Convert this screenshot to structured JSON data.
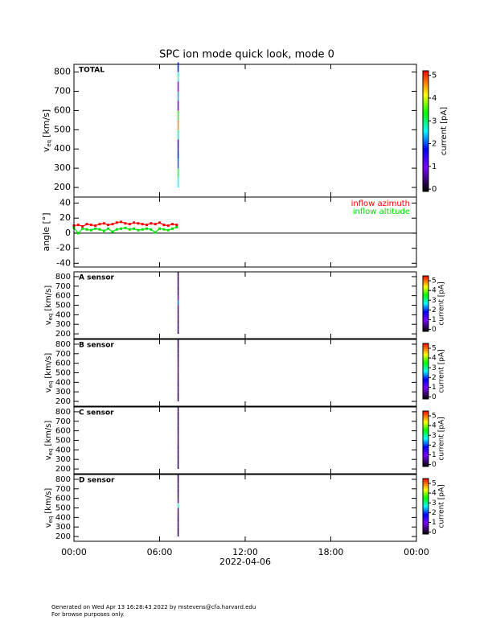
{
  "chart_data": [
    {
      "type": "spectrogram",
      "title": "SPC ion mode quick look, mode 0",
      "label": "TOTAL",
      "ylabel": {
        "main": "v",
        "sub": "eq",
        "unit": "[km/s]"
      },
      "xlim": [
        0,
        24
      ],
      "ylim": [
        150,
        840
      ],
      "yticks": [
        200,
        300,
        400,
        500,
        600,
        700,
        800
      ],
      "x": [
        7.3
      ],
      "bins": [
        200,
        250,
        300,
        350,
        400,
        450,
        500,
        550,
        600,
        650,
        700,
        750,
        800,
        850
      ],
      "values": [
        [
          2.5,
          3.0,
          2.0,
          1.8,
          1.5,
          2.8,
          4.5,
          3.2,
          1.2,
          2.2,
          1.0,
          2.5,
          1.8
        ]
      ],
      "colorbar": {
        "label": "current [pA]",
        "lim": [
          -0.1,
          5.2
        ],
        "ticks": [
          0,
          1,
          2,
          3,
          4,
          5
        ]
      }
    },
    {
      "type": "line",
      "ylabel": "angle [°]",
      "xlim": [
        0,
        24
      ],
      "ylim": [
        -45,
        48
      ],
      "yticks": [
        -40,
        -20,
        0,
        20,
        40
      ],
      "reference_line": 0,
      "x": [
        0,
        0.3,
        0.6,
        0.9,
        1.2,
        1.5,
        1.8,
        2.1,
        2.4,
        2.7,
        3.0,
        3.3,
        3.6,
        3.9,
        4.2,
        4.5,
        4.8,
        5.1,
        5.4,
        5.7,
        6.0,
        6.3,
        6.6,
        6.9,
        7.2
      ],
      "series": [
        {
          "name": "inflow azimuth",
          "color": "#ff0000",
          "values": [
            10,
            11,
            9,
            12,
            11,
            10,
            12,
            13,
            11,
            12,
            14,
            15,
            13,
            12,
            14,
            13,
            12,
            11,
            13,
            12,
            14,
            11,
            10,
            12,
            11
          ]
        },
        {
          "name": "inflow altitude",
          "color": "#00e000",
          "values": [
            7,
            0,
            6,
            5,
            4,
            6,
            5,
            3,
            6,
            2,
            5,
            6,
            7,
            5,
            6,
            4,
            5,
            6,
            5,
            1,
            6,
            5,
            4,
            6,
            8
          ]
        }
      ]
    },
    {
      "type": "spectrogram",
      "label": "A sensor",
      "ylabel": {
        "main": "v",
        "sub": "eq",
        "unit": "[km/s]"
      },
      "xlim": [
        0,
        24
      ],
      "ylim": [
        150,
        850
      ],
      "yticks": [
        200,
        300,
        400,
        500,
        600,
        700,
        800
      ],
      "x": [
        7.3
      ],
      "bins": [
        200,
        250,
        300,
        350,
        400,
        450,
        500,
        550,
        600,
        650,
        700,
        750,
        800,
        850
      ],
      "values": [
        [
          0.3,
          0.4,
          0.3,
          0.5,
          0.4,
          0.6,
          2.0,
          0.8,
          0.4,
          0.3,
          0.4,
          0.3,
          0.3
        ]
      ],
      "colorbar": {
        "label": "current [pA]",
        "lim": [
          -0.2,
          5.5
        ],
        "ticks": [
          0,
          1,
          2,
          3,
          4,
          5
        ]
      }
    },
    {
      "type": "spectrogram",
      "label": "B sensor",
      "ylabel": {
        "main": "v",
        "sub": "eq",
        "unit": "[km/s]"
      },
      "xlim": [
        0,
        24
      ],
      "ylim": [
        150,
        850
      ],
      "yticks": [
        200,
        300,
        400,
        500,
        600,
        700,
        800
      ],
      "x": [
        7.3
      ],
      "bins": [
        200,
        250,
        300,
        350,
        400,
        450,
        500,
        550,
        600,
        650,
        700,
        750,
        800,
        850
      ],
      "values": [
        [
          0.3,
          0.3,
          0.4,
          0.3,
          0.4,
          0.5,
          0.6,
          0.5,
          0.4,
          0.3,
          0.3,
          0.3,
          0.3
        ]
      ],
      "colorbar": {
        "label": "current [pA]",
        "lim": [
          -0.2,
          5.5
        ],
        "ticks": [
          0,
          1,
          2,
          3,
          4,
          5
        ]
      }
    },
    {
      "type": "spectrogram",
      "label": "C sensor",
      "ylabel": {
        "main": "v",
        "sub": "eq",
        "unit": "[km/s]"
      },
      "xlim": [
        0,
        24
      ],
      "ylim": [
        150,
        850
      ],
      "yticks": [
        200,
        300,
        400,
        500,
        600,
        700,
        800
      ],
      "x": [
        7.3
      ],
      "bins": [
        200,
        250,
        300,
        350,
        400,
        450,
        500,
        550,
        600,
        650,
        700,
        750,
        800,
        850
      ],
      "values": [
        [
          0.3,
          0.3,
          0.3,
          0.4,
          0.3,
          0.4,
          0.5,
          0.4,
          0.3,
          0.3,
          0.3,
          0.3,
          0.3
        ]
      ],
      "colorbar": {
        "label": "current [pA]",
        "lim": [
          -0.2,
          5.5
        ],
        "ticks": [
          0,
          1,
          2,
          3,
          4,
          5
        ]
      }
    },
    {
      "type": "spectrogram",
      "label": "D sensor",
      "ylabel": {
        "main": "v",
        "sub": "eq",
        "unit": "[km/s]"
      },
      "xlim": [
        0,
        24
      ],
      "ylim": [
        150,
        850
      ],
      "yticks": [
        200,
        300,
        400,
        500,
        600,
        700,
        800
      ],
      "x": [
        7.3
      ],
      "bins": [
        200,
        250,
        300,
        350,
        400,
        450,
        500,
        550,
        600,
        650,
        700,
        750,
        800,
        850
      ],
      "values": [
        [
          0.3,
          0.3,
          0.4,
          0.3,
          0.4,
          0.6,
          2.5,
          0.7,
          0.4,
          0.3,
          0.3,
          0.3,
          0.3
        ]
      ],
      "colorbar": {
        "label": "current [pA]",
        "lim": [
          -0.2,
          5.5
        ],
        "ticks": [
          0,
          1,
          2,
          3,
          4,
          5
        ]
      },
      "xticks": [
        {
          "value": 0,
          "label": "00:00"
        },
        {
          "value": 6,
          "label": "06:00"
        },
        {
          "value": 12,
          "label": "12:00"
        },
        {
          "value": 18,
          "label": "18:00"
        },
        {
          "value": 24,
          "label": "00:00"
        }
      ],
      "xlabel": "2022-04-06"
    }
  ],
  "footer": [
    "Generated on Wed Apr 13 16:28:43 2022 by mstevens@cfa.harvard.edu",
    "For browse purposes only."
  ]
}
